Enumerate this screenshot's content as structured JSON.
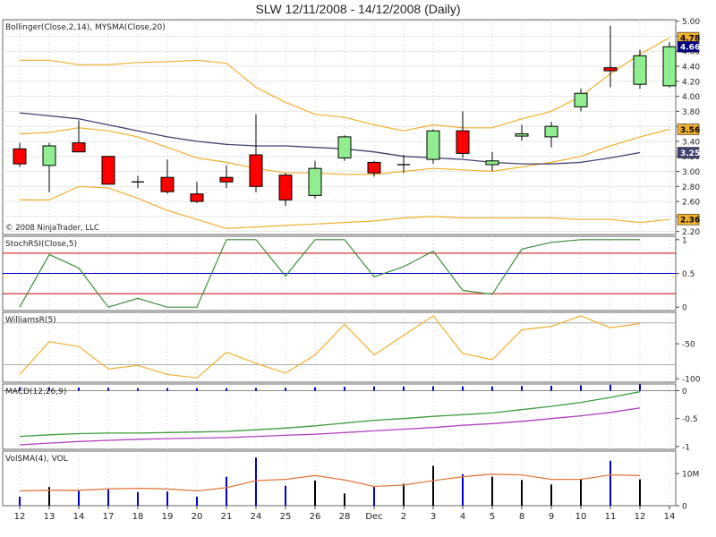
{
  "title": "SLW  12/11/2008 - 14/12/2008 (Daily)",
  "copyright": "© 2008 NinjaTrader, LLC",
  "colors": {
    "up": "#90ee90",
    "down": "#ff0000",
    "bollinger": "#f0b030",
    "sma": "#404070",
    "stoch": "#3c8c3c",
    "williams": "#f0b030",
    "macd": "#3c9c3c",
    "macd_signal": "#b040c0",
    "vol_line": "#e07840",
    "vol_bar": "#0000cc",
    "last_price": "#000080"
  },
  "chart_data": [
    {
      "type": "candlestick",
      "panel": "price",
      "label": "Bollinger(Close,2,14), MYSMA(Close,20)",
      "categories": [
        "12",
        "13",
        "14",
        "17",
        "18",
        "19",
        "20",
        "21",
        "24",
        "25",
        "26",
        "28",
        "Dec",
        "2",
        "3",
        "4",
        "5",
        "8",
        "9",
        "10",
        "11",
        "12",
        "14"
      ],
      "ohlc": [
        [
          3.3,
          3.38,
          3.06,
          3.1
        ],
        [
          3.08,
          3.38,
          2.72,
          3.34
        ],
        [
          3.38,
          3.68,
          3.28,
          3.26
        ],
        [
          3.2,
          3.2,
          2.85,
          2.83
        ],
        [
          2.86,
          2.94,
          2.78,
          2.85
        ],
        [
          2.92,
          3.16,
          2.7,
          2.73
        ],
        [
          2.7,
          2.86,
          2.58,
          2.6
        ],
        [
          2.92,
          3.08,
          2.78,
          2.86
        ],
        [
          3.22,
          3.76,
          2.72,
          2.8
        ],
        [
          2.95,
          2.98,
          2.54,
          2.62
        ],
        [
          2.68,
          3.14,
          2.64,
          3.04
        ],
        [
          3.18,
          3.48,
          3.14,
          3.46
        ],
        [
          3.12,
          3.14,
          2.93,
          2.98
        ],
        [
          3.09,
          3.22,
          2.98,
          3.09
        ],
        [
          3.16,
          3.56,
          3.1,
          3.54
        ],
        [
          3.54,
          3.8,
          3.18,
          3.24
        ],
        [
          3.09,
          3.26,
          3.0,
          3.14
        ],
        [
          3.47,
          3.62,
          3.41,
          3.5
        ],
        [
          3.46,
          3.66,
          3.32,
          3.6
        ],
        [
          3.86,
          4.1,
          3.8,
          4.04
        ],
        [
          4.38,
          4.94,
          4.12,
          4.34
        ],
        [
          4.16,
          4.62,
          4.1,
          4.54
        ],
        [
          4.14,
          4.72,
          4.12,
          4.66
        ]
      ],
      "bollinger_upper": [
        4.48,
        4.48,
        4.42,
        4.42,
        4.45,
        4.46,
        4.48,
        4.44,
        4.12,
        3.92,
        3.76,
        3.72,
        3.62,
        3.54,
        3.62,
        3.58,
        3.58,
        3.7,
        3.8,
        4.0,
        4.3,
        4.56,
        4.78
      ],
      "bollinger_mid": [
        3.5,
        3.52,
        3.58,
        3.54,
        3.46,
        3.32,
        3.18,
        3.12,
        3.04,
        2.98,
        2.98,
        2.96,
        2.96,
        3.0,
        3.04,
        3.02,
        3.0,
        3.06,
        3.12,
        3.2,
        3.34,
        3.46,
        3.56
      ],
      "bollinger_lower": [
        2.62,
        2.62,
        2.8,
        2.78,
        2.64,
        2.48,
        2.36,
        2.24,
        2.26,
        2.28,
        2.3,
        2.32,
        2.34,
        2.38,
        2.4,
        2.38,
        2.38,
        2.38,
        2.38,
        2.36,
        2.36,
        2.32,
        2.36
      ],
      "sma": [
        3.78,
        3.74,
        3.7,
        3.62,
        3.54,
        3.46,
        3.4,
        3.36,
        3.34,
        3.34,
        3.32,
        3.3,
        3.26,
        3.2,
        3.18,
        3.16,
        3.12,
        3.1,
        3.1,
        3.12,
        3.18,
        3.25,
        null
      ],
      "axis": {
        "ticks": [
          2.2,
          2.4,
          2.6,
          2.8,
          3.0,
          3.2,
          3.4,
          3.6,
          3.8,
          4.0,
          4.2,
          4.4,
          4.6,
          4.8,
          5.0
        ],
        "tick_labels": [
          "2.20",
          "2.40",
          "2.60",
          "2.80",
          "3.00",
          "3.20",
          "3.40",
          "3.60",
          "3.80",
          "4.00",
          "4.20",
          "4.40",
          "4.60",
          "4.80",
          "5.00"
        ],
        "ylim": [
          2.16,
          5.02
        ]
      },
      "value_badges": [
        {
          "value": 4.78,
          "label": "4.78",
          "style": "band"
        },
        {
          "value": 4.66,
          "label": "4.66",
          "style": "last"
        },
        {
          "value": 3.56,
          "label": "3.56",
          "style": "band"
        },
        {
          "value": 3.25,
          "label": "3.25",
          "style": "sma"
        },
        {
          "value": 2.36,
          "label": "2.36",
          "style": "band"
        }
      ]
    },
    {
      "type": "line",
      "panel": "stochrsi",
      "label": "StochRSI(Close,5)",
      "values": [
        0.0,
        0.78,
        0.58,
        0.0,
        0.13,
        0.0,
        0.0,
        1.0,
        1.0,
        0.46,
        1.0,
        1.0,
        0.45,
        0.6,
        0.83,
        0.25,
        0.19,
        0.86,
        0.96,
        1.0,
        1.0,
        1.0,
        null
      ],
      "levels": [
        {
          "value": 0.8,
          "color": "#cc0000"
        },
        {
          "value": 0.5,
          "color": "#0000cc"
        },
        {
          "value": 0.2,
          "color": "#cc0000"
        }
      ],
      "ylim": [
        -0.05,
        1.05
      ],
      "tick_labels": [
        {
          "value": 1,
          "label": "1"
        },
        {
          "value": 0.5,
          "label": "0.5"
        },
        {
          "value": 0,
          "label": "0"
        }
      ]
    },
    {
      "type": "line",
      "panel": "williamsr",
      "label": "WilliamsR(5)",
      "values": [
        -94,
        -47,
        -54,
        -86,
        -81,
        -94,
        -99,
        -62,
        -78,
        -92,
        -66,
        -22,
        -66,
        -38,
        -10,
        -64,
        -73,
        -30,
        -25,
        -10,
        -27,
        -21,
        null
      ],
      "levels": [
        {
          "value": -20,
          "color": "#aaaaaa"
        },
        {
          "value": -80,
          "color": "#aaaaaa"
        }
      ],
      "ylim": [
        -105,
        -5
      ],
      "tick_labels": [
        {
          "value": -50,
          "label": "-50"
        },
        {
          "value": -100,
          "label": "-100"
        }
      ]
    },
    {
      "type": "line",
      "panel": "macd",
      "label": "MACD(12,26,9)",
      "macd": [
        -0.82,
        -0.79,
        -0.77,
        -0.76,
        -0.76,
        -0.75,
        -0.74,
        -0.73,
        -0.7,
        -0.67,
        -0.63,
        -0.58,
        -0.53,
        -0.5,
        -0.46,
        -0.43,
        -0.4,
        -0.34,
        -0.28,
        -0.21,
        -0.12,
        -0.02,
        null
      ],
      "signal": [
        -0.97,
        -0.94,
        -0.91,
        -0.89,
        -0.87,
        -0.86,
        -0.85,
        -0.84,
        -0.82,
        -0.8,
        -0.78,
        -0.75,
        -0.72,
        -0.69,
        -0.66,
        -0.62,
        -0.59,
        -0.55,
        -0.5,
        -0.45,
        -0.39,
        -0.31,
        null
      ],
      "ylim": [
        -1.05,
        0.12
      ],
      "tick_labels": [
        {
          "value": 0,
          "label": "0"
        },
        {
          "value": -0.5,
          "label": "-0.5"
        },
        {
          "value": -1,
          "label": "-1"
        }
      ]
    },
    {
      "type": "bar+line",
      "panel": "volume",
      "label": "VolSMA(4), VOL",
      "volume": [
        2.8,
        5.8,
        4.8,
        5.0,
        4.2,
        4.4,
        2.8,
        9.0,
        15.0,
        6.2,
        7.8,
        3.8,
        6.0,
        6.8,
        12.4,
        9.8,
        9.0,
        8.0,
        6.6,
        8.4,
        14.0,
        8.2,
        null
      ],
      "vol_sma": [
        4.6,
        4.8,
        4.8,
        5.2,
        5.4,
        5.2,
        4.6,
        5.6,
        7.8,
        8.2,
        9.4,
        8.0,
        6.0,
        6.4,
        7.8,
        9.0,
        9.8,
        9.6,
        8.2,
        8.2,
        9.6,
        9.4,
        null
      ],
      "ylim": [
        0,
        17
      ],
      "tick_labels": [
        {
          "value": 10,
          "label": "10M"
        },
        {
          "value": 0,
          "label": "0"
        }
      ]
    }
  ]
}
